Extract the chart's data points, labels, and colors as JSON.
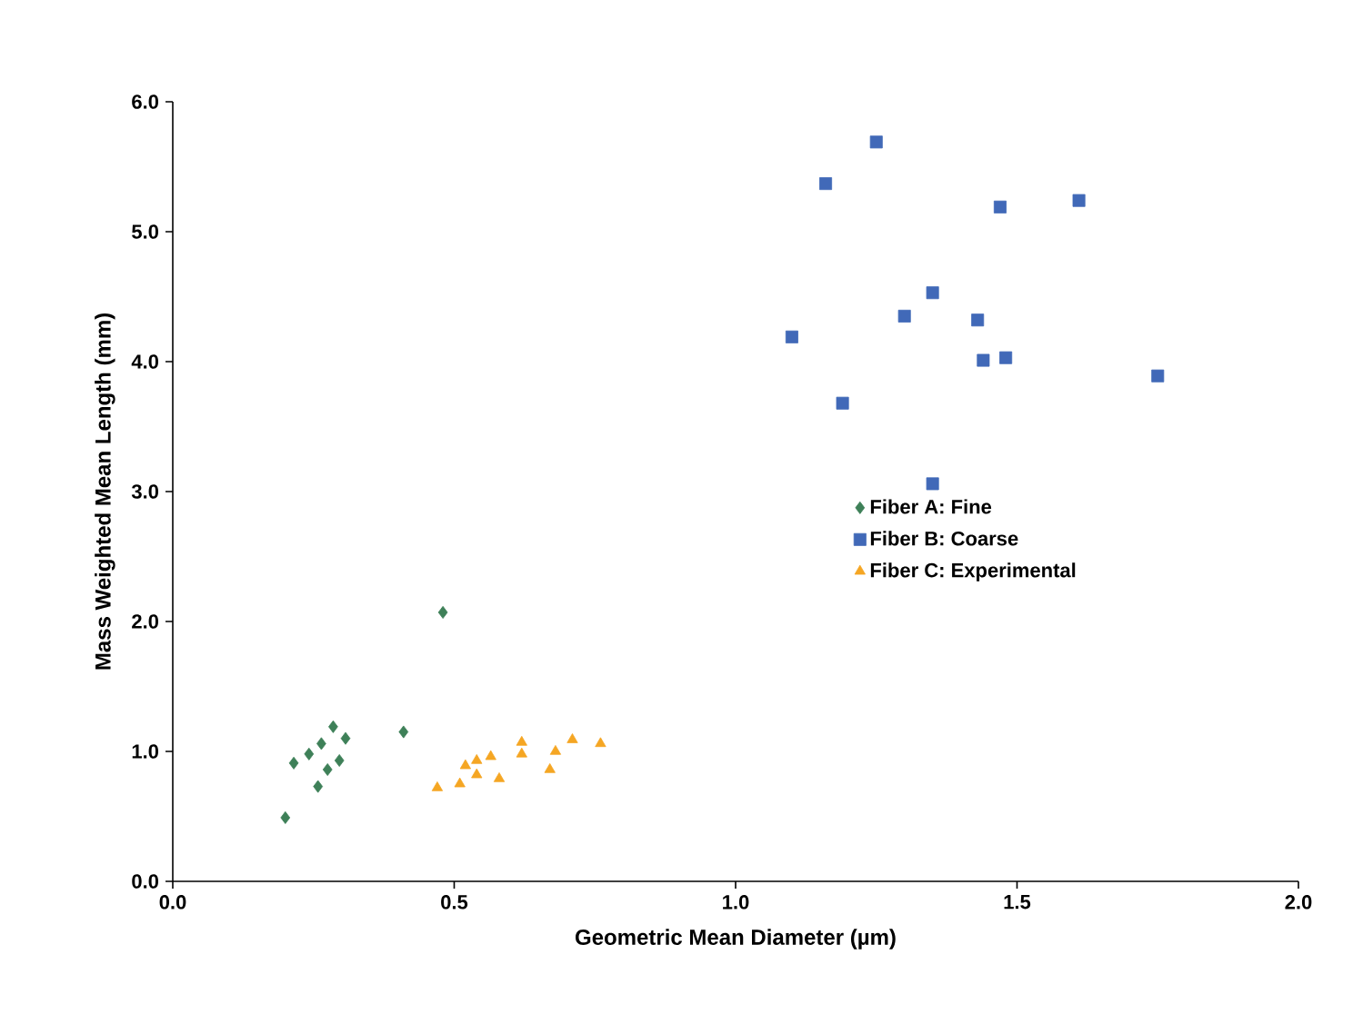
{
  "chart_data": {
    "type": "scatter",
    "xlabel": "Geometric Mean Diameter (µm)",
    "ylabel": "Mass Weighted Mean Length (mm)",
    "xlim": [
      0,
      2
    ],
    "xticks": [
      {
        "value": 0,
        "label": "0.0"
      },
      {
        "value": 0.5,
        "label": "0.5"
      },
      {
        "value": 1,
        "label": "1.0"
      },
      {
        "value": 1.5,
        "label": "1.5"
      },
      {
        "value": 2,
        "label": "2.0"
      }
    ],
    "ylim": [
      0,
      6
    ],
    "yticks": [
      {
        "value": 0,
        "label": "0.0"
      },
      {
        "value": 1,
        "label": "1.0"
      },
      {
        "value": 2,
        "label": "2.0"
      },
      {
        "value": 3,
        "label": "3.0"
      },
      {
        "value": 4,
        "label": "4.0"
      },
      {
        "value": 5,
        "label": "5.0"
      },
      {
        "value": 6,
        "label": "6.0"
      }
    ],
    "grid": false,
    "legend": "right",
    "series": [
      {
        "name": "Fiber A: Fine",
        "color": "#3e8058",
        "marker": "diamond",
        "x": [
          0.48,
          0.41,
          0.2,
          0.285,
          0.307,
          0.264,
          0.242,
          0.215,
          0.296,
          0.275,
          0.258
        ],
        "values": [
          2.07,
          1.15,
          0.49,
          1.19,
          1.1,
          1.06,
          0.98,
          0.91,
          0.93,
          0.86,
          0.73
        ]
      },
      {
        "name": "Fiber B: Coarse",
        "color": "#4169b8",
        "marker": "square",
        "x": [
          1.16,
          1.25,
          1.47,
          1.61,
          1.35,
          1.3,
          1.43,
          1.1,
          1.44,
          1.48,
          1.75,
          1.19,
          1.35
        ],
        "values": [
          5.37,
          5.69,
          5.19,
          5.24,
          4.53,
          4.35,
          4.32,
          4.19,
          4.01,
          4.03,
          3.89,
          3.68,
          3.06
        ]
      },
      {
        "name": "Fiber C: Experimental",
        "color": "#f5a623",
        "marker": "triangle",
        "x": [
          0.47,
          0.51,
          0.52,
          0.54,
          0.54,
          0.565,
          0.58,
          0.62,
          0.62,
          0.67,
          0.68,
          0.71,
          0.76
        ],
        "values": [
          0.72,
          0.75,
          0.89,
          0.93,
          0.82,
          0.96,
          0.79,
          1.07,
          0.98,
          0.86,
          1.0,
          1.09,
          1.06
        ]
      }
    ]
  }
}
